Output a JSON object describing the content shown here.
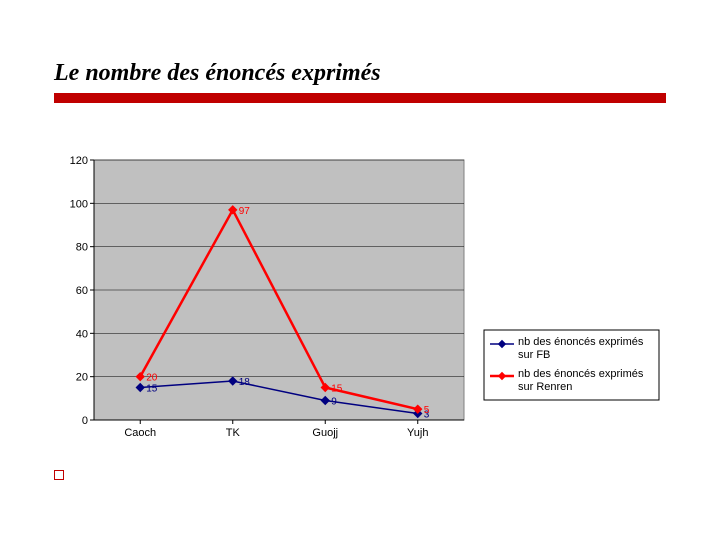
{
  "title": "Le nombre des énoncés exprimés",
  "chart": {
    "type": "line",
    "plot_background": "#c0c0c0",
    "plot_border": "#808080",
    "grid_color": "#000000",
    "axis_color": "#000000",
    "series": [
      {
        "name": "nb des énoncés exprimés sur FB",
        "color": "#000080",
        "line_width": 1.5,
        "marker": "diamond",
        "marker_size": 6,
        "label_color": "#000080",
        "values": [
          15,
          18,
          9,
          3
        ]
      },
      {
        "name": "nb des énoncés exprimés sur Renren",
        "color": "#ff0000",
        "line_width": 2.5,
        "marker": "diamond",
        "marker_size": 6,
        "label_color": "#ff0000",
        "values": [
          20,
          97,
          15,
          5
        ]
      }
    ],
    "categories": [
      "Caoch",
      "TK",
      "Guojj",
      "Yujh"
    ],
    "ylim": [
      0,
      120
    ],
    "ytick_step": 20,
    "tick_font_size": 11,
    "label_font_size": 10,
    "legend_border": "#000000",
    "legend_bg": "#ffffff"
  }
}
